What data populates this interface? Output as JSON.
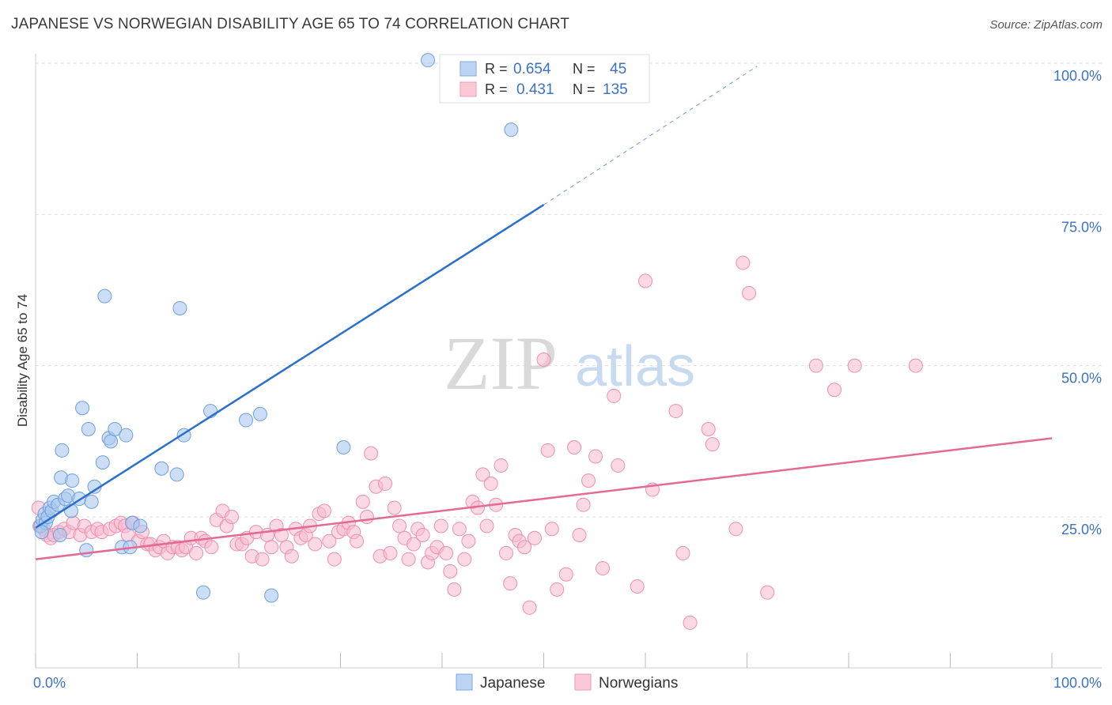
{
  "title": "JAPANESE VS NORWEGIAN DISABILITY AGE 65 TO 74 CORRELATION CHART",
  "source": "Source: ZipAtlas.com",
  "watermark": {
    "zip": "ZIP",
    "atlas": "atlas"
  },
  "colors": {
    "japanese_fill": "#a9c8f0",
    "japanese_stroke": "#6f9fdc",
    "japanese_line": "#2a6fcc",
    "norwegian_fill": "#f7b9cd",
    "norwegian_stroke": "#ec8fae",
    "norwegian_line": "#e36a93",
    "tick_label": "#3b72c4",
    "grid": "#dddddd"
  },
  "stats_legend": {
    "rows": [
      {
        "r_label": "R =",
        "r_value": "0.654",
        "n_label": "N =",
        "n_value": "45"
      },
      {
        "r_label": "R =",
        "r_value": "0.431",
        "n_label": "N =",
        "n_value": "135"
      }
    ]
  },
  "legend": {
    "items": [
      "Japanese",
      "Norwegians"
    ]
  },
  "chart_data": {
    "type": "scatter",
    "title": "JAPANESE VS NORWEGIAN DISABILITY AGE 65 TO 74 CORRELATION CHART",
    "xlabel": "",
    "ylabel": "Disability Age 65 to 74",
    "xlim": [
      0,
      100
    ],
    "ylim": [
      0,
      105
    ],
    "x_tick_labels": [
      "0.0%",
      "100.0%"
    ],
    "y_ticks": [
      25,
      50,
      75,
      100
    ],
    "y_tick_labels": [
      "25.0%",
      "50.0%",
      "75.0%",
      "100.0%"
    ],
    "grid": true,
    "legend_position": "bottom-center",
    "series": [
      {
        "name": "Japanese",
        "r": 0.654,
        "n": 45,
        "trend": {
          "x0": 0,
          "y0": 23.2,
          "x1": 50,
          "y1": 76.6,
          "dashed_to_x": 71,
          "dashed_to_y": 99.5
        },
        "points": [
          [
            0.5,
            23.5
          ],
          [
            0.7,
            24.5
          ],
          [
            0.9,
            25.5
          ],
          [
            1.0,
            24.0
          ],
          [
            1.2,
            25.0
          ],
          [
            1.4,
            26.5
          ],
          [
            1.6,
            26.0
          ],
          [
            1.8,
            27.5
          ],
          [
            2.2,
            27.0
          ],
          [
            2.4,
            22.0
          ],
          [
            2.5,
            31.5
          ],
          [
            2.6,
            36.0
          ],
          [
            2.9,
            28.0
          ],
          [
            3.2,
            28.5
          ],
          [
            3.5,
            26.0
          ],
          [
            3.6,
            31.0
          ],
          [
            4.3,
            28.0
          ],
          [
            4.6,
            43.0
          ],
          [
            5.2,
            39.5
          ],
          [
            5.5,
            27.5
          ],
          [
            5.8,
            30.0
          ],
          [
            6.6,
            34.0
          ],
          [
            7.2,
            38.0
          ],
          [
            7.4,
            37.5
          ],
          [
            7.8,
            39.5
          ],
          [
            8.5,
            20.0
          ],
          [
            8.9,
            38.5
          ],
          [
            9.5,
            24.0
          ],
          [
            10.3,
            23.5
          ],
          [
            12.4,
            33.0
          ],
          [
            13.9,
            32.0
          ],
          [
            14.6,
            38.5
          ],
          [
            6.8,
            61.5
          ],
          [
            14.2,
            59.5
          ],
          [
            16.5,
            12.5
          ],
          [
            17.2,
            42.5
          ],
          [
            20.7,
            41.0
          ],
          [
            22.1,
            42.0
          ],
          [
            23.2,
            12.0
          ],
          [
            30.3,
            36.5
          ],
          [
            38.6,
            100.5
          ],
          [
            46.8,
            89.0
          ],
          [
            5.0,
            19.5
          ],
          [
            9.3,
            20.0
          ],
          [
            0.6,
            22.5
          ]
        ]
      },
      {
        "name": "Norwegians",
        "r": 0.431,
        "n": 135,
        "trend": {
          "x0": 0,
          "y0": 18.0,
          "x1": 100,
          "y1": 38.0
        },
        "points": [
          [
            0.3,
            26.5
          ],
          [
            0.4,
            23.5
          ],
          [
            0.8,
            23.0
          ],
          [
            1.1,
            22.0
          ],
          [
            1.5,
            21.5
          ],
          [
            1.8,
            22.0
          ],
          [
            2.3,
            22.5
          ],
          [
            2.8,
            23.0
          ],
          [
            3.3,
            22.5
          ],
          [
            3.7,
            24.0
          ],
          [
            4.4,
            22.0
          ],
          [
            4.8,
            23.5
          ],
          [
            5.5,
            22.5
          ],
          [
            6.1,
            23.0
          ],
          [
            6.5,
            22.5
          ],
          [
            7.3,
            23.0
          ],
          [
            7.9,
            23.5
          ],
          [
            8.4,
            24.0
          ],
          [
            8.8,
            23.5
          ],
          [
            9.1,
            22.0
          ],
          [
            9.6,
            24.0
          ],
          [
            10.1,
            21.0
          ],
          [
            10.5,
            22.5
          ],
          [
            11.0,
            20.5
          ],
          [
            11.3,
            20.5
          ],
          [
            11.8,
            19.5
          ],
          [
            12.2,
            20.0
          ],
          [
            12.6,
            21.0
          ],
          [
            13.0,
            19.0
          ],
          [
            13.5,
            20.0
          ],
          [
            14.0,
            20.0
          ],
          [
            14.4,
            19.5
          ],
          [
            14.8,
            20.0
          ],
          [
            15.3,
            21.5
          ],
          [
            15.8,
            19.0
          ],
          [
            16.3,
            21.5
          ],
          [
            16.7,
            21.0
          ],
          [
            17.3,
            20.0
          ],
          [
            17.8,
            24.5
          ],
          [
            18.4,
            26.0
          ],
          [
            18.8,
            23.5
          ],
          [
            19.3,
            25.0
          ],
          [
            19.8,
            20.5
          ],
          [
            20.3,
            20.5
          ],
          [
            20.8,
            21.5
          ],
          [
            21.3,
            18.5
          ],
          [
            21.7,
            22.5
          ],
          [
            22.3,
            18.0
          ],
          [
            22.8,
            22.0
          ],
          [
            23.2,
            20.0
          ],
          [
            23.7,
            23.5
          ],
          [
            24.2,
            22.0
          ],
          [
            24.7,
            20.0
          ],
          [
            25.2,
            18.5
          ],
          [
            25.6,
            23.0
          ],
          [
            26.1,
            21.5
          ],
          [
            26.6,
            22.0
          ],
          [
            27.0,
            23.5
          ],
          [
            27.5,
            20.5
          ],
          [
            27.9,
            25.5
          ],
          [
            28.4,
            26.0
          ],
          [
            28.9,
            21.0
          ],
          [
            29.4,
            18.0
          ],
          [
            29.8,
            22.5
          ],
          [
            30.3,
            23.0
          ],
          [
            30.8,
            24.0
          ],
          [
            31.3,
            22.5
          ],
          [
            31.6,
            21.0
          ],
          [
            32.2,
            27.5
          ],
          [
            32.6,
            25.0
          ],
          [
            33.0,
            35.5
          ],
          [
            33.5,
            30.0
          ],
          [
            33.9,
            18.5
          ],
          [
            34.4,
            30.5
          ],
          [
            34.9,
            19.0
          ],
          [
            35.3,
            26.5
          ],
          [
            35.8,
            23.5
          ],
          [
            36.3,
            21.5
          ],
          [
            36.7,
            18.0
          ],
          [
            37.2,
            20.5
          ],
          [
            37.6,
            23.0
          ],
          [
            38.1,
            22.0
          ],
          [
            38.6,
            17.5
          ],
          [
            39.0,
            19.0
          ],
          [
            39.5,
            20.0
          ],
          [
            39.9,
            23.5
          ],
          [
            40.4,
            19.0
          ],
          [
            40.8,
            16.0
          ],
          [
            41.2,
            13.0
          ],
          [
            41.7,
            23.0
          ],
          [
            42.2,
            18.0
          ],
          [
            42.6,
            21.0
          ],
          [
            43.0,
            27.5
          ],
          [
            43.5,
            26.5
          ],
          [
            44.0,
            32.0
          ],
          [
            44.4,
            23.5
          ],
          [
            44.8,
            30.5
          ],
          [
            45.3,
            27.0
          ],
          [
            45.8,
            33.5
          ],
          [
            46.3,
            19.0
          ],
          [
            46.7,
            14.0
          ],
          [
            47.2,
            22.0
          ],
          [
            47.6,
            21.0
          ],
          [
            48.1,
            20.0
          ],
          [
            48.6,
            10.0
          ],
          [
            49.1,
            21.5
          ],
          [
            50.0,
            51.0
          ],
          [
            50.4,
            36.0
          ],
          [
            50.8,
            23.0
          ],
          [
            51.3,
            13.0
          ],
          [
            52.2,
            15.5
          ],
          [
            53.0,
            36.5
          ],
          [
            53.5,
            22.0
          ],
          [
            53.9,
            27.0
          ],
          [
            54.4,
            31.0
          ],
          [
            55.1,
            35.0
          ],
          [
            55.8,
            16.5
          ],
          [
            56.9,
            45.0
          ],
          [
            57.3,
            33.5
          ],
          [
            59.2,
            13.5
          ],
          [
            60.7,
            29.5
          ],
          [
            63.0,
            42.5
          ],
          [
            63.7,
            19.0
          ],
          [
            64.4,
            7.5
          ],
          [
            66.2,
            39.5
          ],
          [
            66.6,
            37.0
          ],
          [
            68.9,
            23.0
          ],
          [
            69.6,
            67.0
          ],
          [
            70.2,
            62.0
          ],
          [
            72.0,
            12.5
          ],
          [
            76.8,
            50.0
          ],
          [
            78.6,
            46.0
          ],
          [
            80.6,
            50.0
          ],
          [
            86.6,
            50.0
          ],
          [
            60.0,
            64.0
          ]
        ]
      }
    ]
  }
}
